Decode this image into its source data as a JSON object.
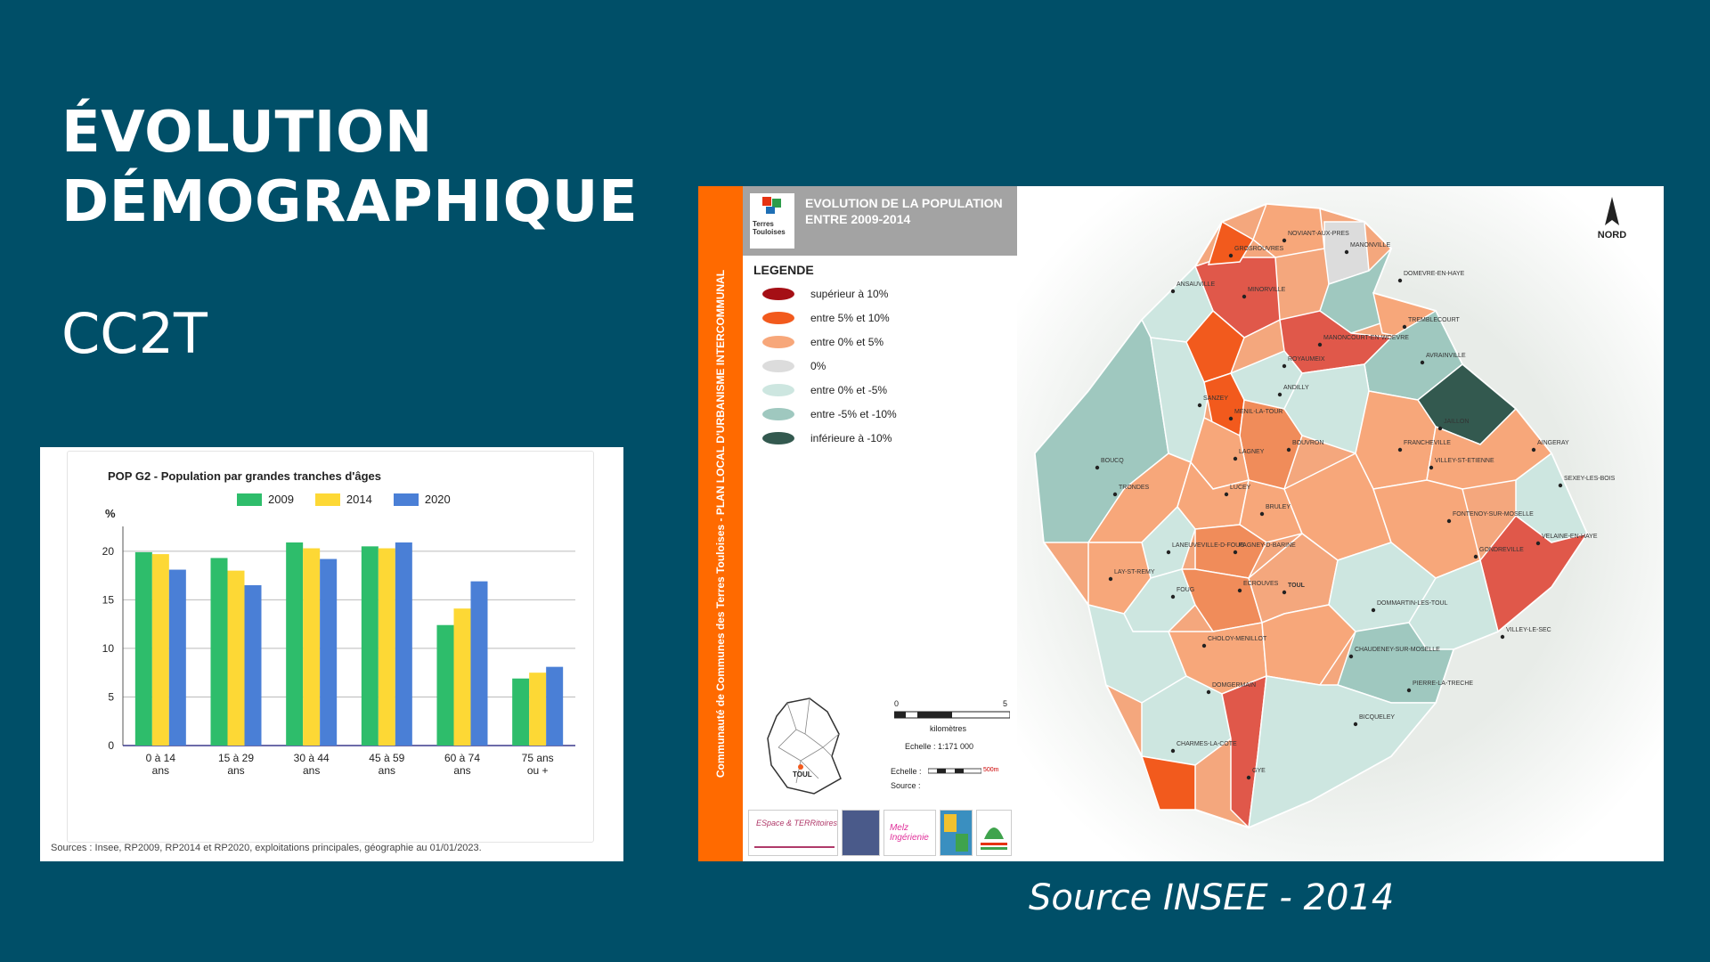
{
  "slide": {
    "title_line1": "ÉVOLUTION",
    "title_line2": "DÉMOGRAPHIQUE",
    "subtitle": "CC2T",
    "source_caption": "Source INSEE - 2014"
  },
  "bar_chart": {
    "title": "POP G2 - Population par grandes tranches d'âges",
    "sources": "Sources : Insee, RP2009, RP2014 et RP2020, exploitations principales, géographie au 01/01/2023."
  },
  "chart_data": {
    "type": "bar",
    "categories": [
      [
        "0 à 14",
        "ans"
      ],
      [
        "15 à 29",
        "ans"
      ],
      [
        "30 à 44",
        "ans"
      ],
      [
        "45 à 59",
        "ans"
      ],
      [
        "60 à 74",
        "ans"
      ],
      [
        "75 ans",
        "ou +"
      ]
    ],
    "series": [
      {
        "name": "2009",
        "color": "#2ebd6b",
        "values": [
          19.9,
          19.3,
          20.9,
          20.5,
          12.4,
          6.9
        ]
      },
      {
        "name": "2014",
        "color": "#fdd835",
        "values": [
          19.7,
          18.0,
          20.3,
          20.3,
          14.1,
          7.5
        ]
      },
      {
        "name": "2020",
        "color": "#4a7fd6",
        "values": [
          18.1,
          16.5,
          19.2,
          20.9,
          16.9,
          8.1
        ]
      }
    ],
    "ylabel": "%",
    "yticks": [
      0,
      5,
      10,
      15,
      20
    ],
    "ylim": [
      0,
      22
    ],
    "grid": true,
    "legend_position": "top"
  },
  "map": {
    "vertical_title": "Communauté de Communes des Terres Touloises - PLAN LOCAL D'URBANISME INTERCOMMUNAL",
    "logo_text_1": "Terres",
    "logo_text_2": "Touloises",
    "title": "EVOLUTION DE LA POPULATION ENTRE 2009-2014",
    "legend_title": "LEGENDE",
    "legend": [
      {
        "label": "supérieur à 10%",
        "color": "#a50f15"
      },
      {
        "label": "entre 5% et 10%",
        "color": "#f25a1d"
      },
      {
        "label": "entre 0% et 5%",
        "color": "#f7a77a"
      },
      {
        "label": "0%",
        "color": "#dcdcdc"
      },
      {
        "label": "entre 0% et -5%",
        "color": "#cde6e0"
      },
      {
        "label": "entre -5% et -10%",
        "color": "#9fc8bf"
      },
      {
        "label": "inférieure à -10%",
        "color": "#33594f"
      }
    ],
    "north": "NORD",
    "scale_start": "0",
    "scale_end": "5",
    "scale_unit": "kilomètres",
    "scale_ratio": "Echelle : 1:171 000",
    "echelle_label": "Echelle :",
    "echelle_value": "500m",
    "source_label": "Source :",
    "inset_label": "TOUL",
    "logos": [
      "ESpace & TERRitoires",
      "Melz Ingérienie"
    ],
    "communes": [
      "NOVIANT-AUX-PRES",
      "GROSROUVRES",
      "MANONVILLE",
      "ANSAUVILLE",
      "MINORVILLE",
      "DOMEVRE-EN-HAYE",
      "TREMBLECOURT",
      "MANONCOURT-EN-WOEVRE",
      "ROYAUMEIX",
      "AVRAINVILLE",
      "ANDILLY",
      "SANZEY",
      "MENIL-LA-TOUR",
      "JAILLON",
      "BOUCQ",
      "BOUVRON",
      "FRANCHEVILLE",
      "AINGERAY",
      "LAGNEY",
      "VILLEY-ST-ETIENNE",
      "SEXEY-LES-BOIS",
      "TRONDES",
      "LUCEY",
      "BRULEY",
      "FONTENOY-SUR-MOSELLE",
      "LANEUVEVILLE-D-FOUG",
      "PAGNEY-D-BARINE",
      "VELAINE-EN-HAYE",
      "GONDREVILLE",
      "LAY-ST-REMY",
      "FOUG",
      "ECROUVES",
      "TOUL",
      "DOMMARTIN-LES-TOUL",
      "CHOLOY-MENILLOT",
      "VILLEY-LE-SEC",
      "CHAUDENEY-SUR-MOSELLE",
      "DOMGERMAIN",
      "PIERRE-LA-TRECHE",
      "BICQUELEY",
      "CHARMES-LA-COTE",
      "GYE"
    ]
  }
}
